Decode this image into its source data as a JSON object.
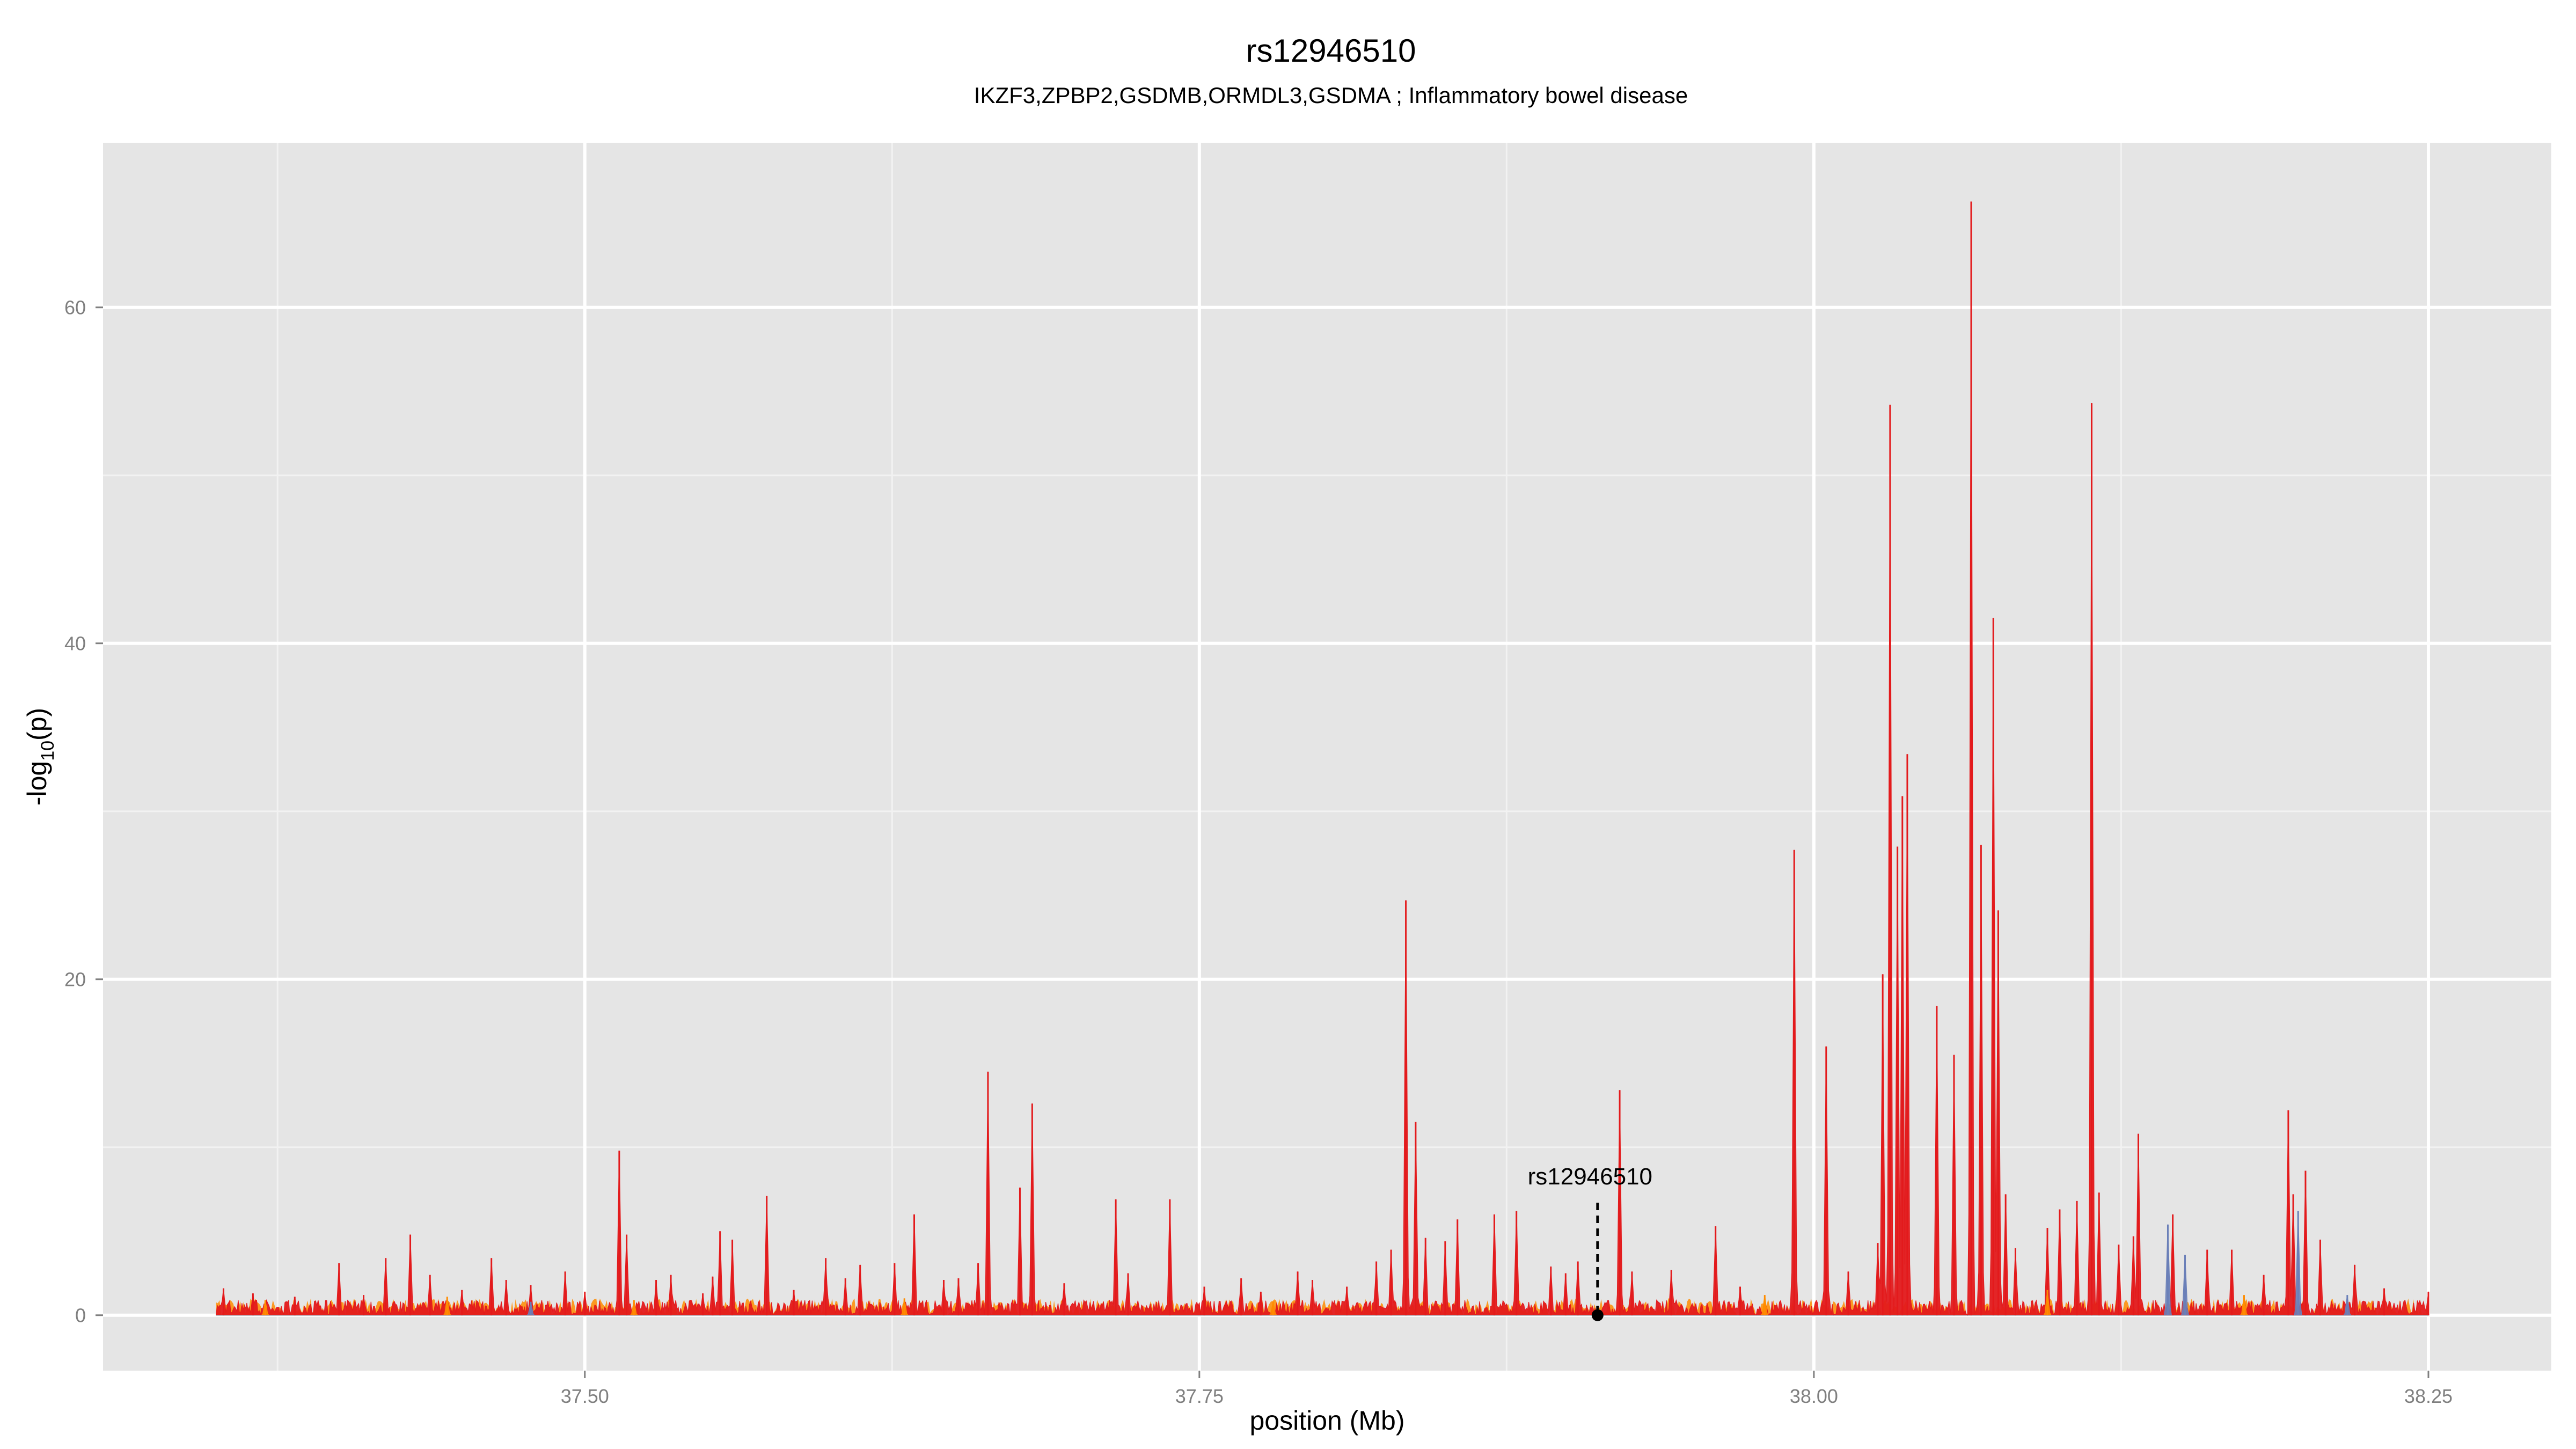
{
  "chart_data": {
    "type": "line",
    "title": "rs12946510",
    "subtitle": "IKZF3,ZPBP2,GSDMB,ORMDL3,GSDMA ; Inflammatory bowel disease",
    "xlabel": "position (Mb)",
    "ylabel_main": "-log",
    "ylabel_sub": "10",
    "ylabel_tail": "(p)",
    "xlim": [
      37.304,
      38.3
    ],
    "ylim": [
      -3.3,
      69.8
    ],
    "x_major_ticks": [
      37.5,
      37.75,
      38.0,
      38.25
    ],
    "x_tick_labels": [
      "37.50",
      "37.75",
      "38.00",
      "38.25"
    ],
    "x_minor_ticks": [
      37.375,
      37.625,
      37.875,
      38.125
    ],
    "y_major_ticks": [
      0,
      20,
      40,
      60
    ],
    "y_tick_labels": [
      "0",
      "20",
      "40",
      "60"
    ],
    "y_minor_ticks": [
      10,
      30,
      50
    ],
    "grid": true,
    "colors": {
      "panel_bg": "#e5e5e5",
      "grid_major": "#ffffff",
      "grid_minor": "#f2f2f2",
      "series_main": "#e31a1c",
      "series_orange": "#ff8c00",
      "series_blue": "#6a7fb8",
      "axis_text": "#7f7f7f",
      "title_text": "#000000"
    },
    "x_range": [
      37.35,
      38.25
    ],
    "annotation": {
      "label": "rs12946510",
      "x": 37.912,
      "y": 0,
      "line_top_y": 6.7
    },
    "series": [
      {
        "color": "#e31a1c",
        "peaks": [
          [
            37.353,
            1.6
          ],
          [
            37.365,
            1.3
          ],
          [
            37.382,
            1.1
          ],
          [
            37.4,
            1.5
          ],
          [
            37.4,
            3.1
          ],
          [
            37.41,
            1.2
          ],
          [
            37.419,
            3.4
          ],
          [
            37.429,
            4.8
          ],
          [
            37.437,
            2.4
          ],
          [
            37.45,
            1.5
          ],
          [
            37.462,
            3.4
          ],
          [
            37.468,
            2.1
          ],
          [
            37.478,
            1.8
          ],
          [
            37.492,
            2.6
          ],
          [
            37.5,
            1.4
          ],
          [
            37.514,
            9.8
          ],
          [
            37.517,
            4.8
          ],
          [
            37.529,
            2.1
          ],
          [
            37.535,
            2.4
          ],
          [
            37.548,
            1.3
          ],
          [
            37.552,
            2.3
          ],
          [
            37.555,
            5.0
          ],
          [
            37.56,
            4.5
          ],
          [
            37.574,
            7.1
          ],
          [
            37.585,
            1.5
          ],
          [
            37.598,
            3.4
          ],
          [
            37.606,
            2.2
          ],
          [
            37.612,
            3.0
          ],
          [
            37.626,
            3.1
          ],
          [
            37.634,
            6.0
          ],
          [
            37.646,
            2.1
          ],
          [
            37.652,
            2.2
          ],
          [
            37.66,
            3.1
          ],
          [
            37.664,
            14.5
          ],
          [
            37.677,
            7.6
          ],
          [
            37.682,
            12.6
          ],
          [
            37.695,
            1.9
          ],
          [
            37.716,
            6.9
          ],
          [
            37.721,
            2.5
          ],
          [
            37.738,
            6.9
          ],
          [
            37.752,
            1.7
          ],
          [
            37.767,
            2.2
          ],
          [
            37.775,
            1.4
          ],
          [
            37.79,
            2.6
          ],
          [
            37.796,
            2.1
          ],
          [
            37.81,
            1.7
          ],
          [
            37.822,
            3.2
          ],
          [
            37.828,
            3.9
          ],
          [
            37.834,
            24.7
          ],
          [
            37.838,
            11.5
          ],
          [
            37.842,
            4.6
          ],
          [
            37.85,
            4.4
          ],
          [
            37.855,
            5.7
          ],
          [
            37.87,
            6.0
          ],
          [
            37.879,
            6.2
          ],
          [
            37.893,
            2.9
          ],
          [
            37.899,
            2.5
          ],
          [
            37.904,
            3.2
          ],
          [
            37.921,
            13.4
          ],
          [
            37.926,
            2.6
          ],
          [
            37.942,
            2.7
          ],
          [
            37.96,
            5.3
          ],
          [
            37.97,
            1.7
          ],
          [
            37.992,
            27.7
          ],
          [
            38.005,
            16.0
          ],
          [
            38.014,
            2.6
          ],
          [
            38.026,
            4.3
          ],
          [
            38.028,
            20.3
          ],
          [
            38.031,
            54.2
          ],
          [
            38.034,
            27.9
          ],
          [
            38.036,
            30.9
          ],
          [
            38.038,
            33.4
          ],
          [
            38.05,
            18.4
          ],
          [
            38.057,
            15.5
          ],
          [
            38.064,
            66.3
          ],
          [
            38.068,
            28.0
          ],
          [
            38.073,
            41.5
          ],
          [
            38.075,
            24.1
          ],
          [
            38.078,
            7.2
          ],
          [
            38.082,
            4.0
          ],
          [
            38.095,
            5.2
          ],
          [
            38.1,
            6.3
          ],
          [
            38.107,
            6.8
          ],
          [
            38.113,
            54.3
          ],
          [
            38.116,
            7.3
          ],
          [
            38.124,
            4.2
          ],
          [
            38.13,
            4.7
          ],
          [
            38.132,
            10.8
          ],
          [
            38.146,
            6.0
          ],
          [
            38.16,
            3.9
          ],
          [
            38.17,
            3.9
          ],
          [
            38.183,
            2.4
          ],
          [
            38.193,
            12.2
          ],
          [
            38.195,
            7.2
          ],
          [
            38.2,
            8.6
          ],
          [
            38.206,
            4.5
          ],
          [
            38.22,
            3.0
          ],
          [
            38.232,
            1.6
          ],
          [
            38.25,
            1.4
          ]
        ]
      },
      {
        "color": "#ff8c00",
        "peaks": [
          [
            37.37,
            0.9
          ],
          [
            37.444,
            1.1
          ],
          [
            37.52,
            0.9
          ],
          [
            37.63,
            1.0
          ],
          [
            37.78,
            0.8
          ],
          [
            37.98,
            1.2
          ],
          [
            38.095,
            1.5
          ],
          [
            38.175,
            1.2
          ]
        ]
      },
      {
        "color": "#6a7fb8",
        "peaks": [
          [
            37.478,
            0.8
          ],
          [
            38.144,
            5.4
          ],
          [
            38.151,
            3.6
          ],
          [
            38.197,
            6.2
          ],
          [
            38.217,
            1.2
          ]
        ]
      }
    ]
  }
}
